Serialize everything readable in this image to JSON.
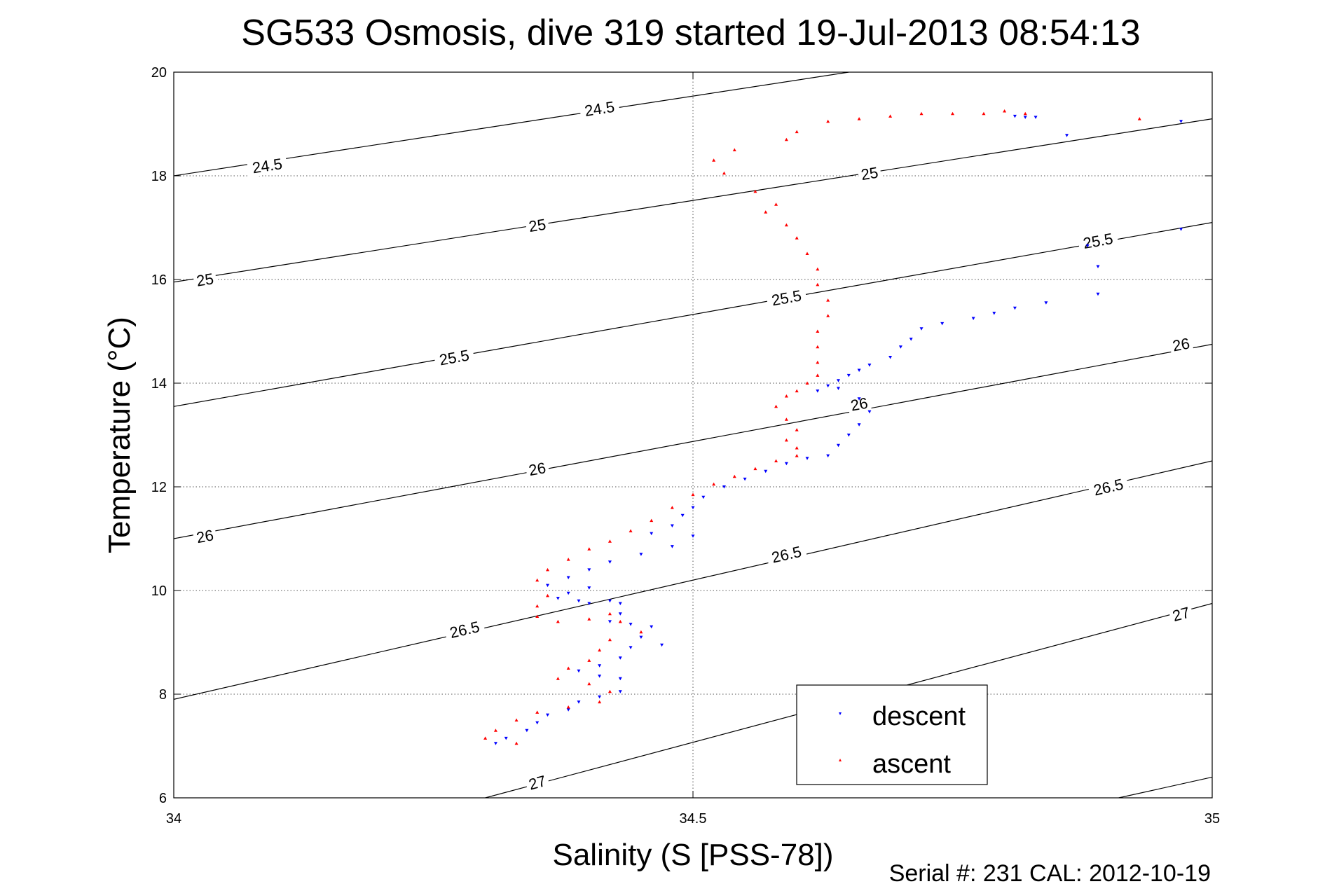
{
  "title": "SG533 Osmosis, dive 319 started 19-Jul-2013 08:54:13",
  "footer": "Serial #: 231  CAL: 2012-10-19",
  "chart_data": {
    "type": "scatter",
    "xlabel": "Salinity (S [PSS-78])",
    "ylabel": "Temperature (°C)",
    "xlim": [
      34,
      35
    ],
    "ylim": [
      6,
      20
    ],
    "xticks": [
      34,
      34.5,
      35
    ],
    "xtick_labels": [
      "34",
      "34.5",
      "35"
    ],
    "yticks": [
      6,
      8,
      10,
      12,
      14,
      16,
      18,
      20
    ],
    "ytick_labels": [
      "6",
      "8",
      "10",
      "12",
      "14",
      "16",
      "18",
      "20"
    ],
    "grid": true,
    "legend_position": "bottom-right",
    "contours": [
      {
        "label": "24.5",
        "line": [
          [
            34,
            18.0
          ],
          [
            34.65,
            20.0
          ]
        ],
        "labels_at": [
          [
            34.09,
            18.2
          ],
          [
            34.41,
            19.3
          ]
        ]
      },
      {
        "label": "25",
        "line": [
          [
            34,
            15.95
          ],
          [
            35,
            19.1
          ]
        ],
        "labels_at": [
          [
            34.03,
            16.0
          ],
          [
            34.35,
            17.05
          ],
          [
            34.67,
            18.05
          ]
        ]
      },
      {
        "label": "25.5",
        "line": [
          [
            34,
            13.55
          ],
          [
            35,
            17.1
          ]
        ],
        "labels_at": [
          [
            34.27,
            14.5
          ],
          [
            34.59,
            15.65
          ],
          [
            34.89,
            16.75
          ]
        ]
      },
      {
        "label": "26",
        "line": [
          [
            34,
            11.0
          ],
          [
            35,
            14.75
          ]
        ],
        "labels_at": [
          [
            34.03,
            11.05
          ],
          [
            34.35,
            12.35
          ],
          [
            34.66,
            13.6
          ],
          [
            34.97,
            14.75
          ]
        ]
      },
      {
        "label": "26.5",
        "line": [
          [
            34,
            7.9
          ],
          [
            35,
            12.5
          ]
        ],
        "labels_at": [
          [
            34.28,
            9.25
          ],
          [
            34.59,
            10.7
          ],
          [
            34.9,
            12.0
          ]
        ]
      },
      {
        "label": "27",
        "line": [
          [
            34.3,
            6.0
          ],
          [
            35,
            9.75
          ]
        ],
        "labels_at": [
          [
            34.35,
            6.3
          ],
          [
            34.97,
            9.55
          ]
        ]
      },
      {
        "label": "",
        "line": [
          [
            34.91,
            6.0
          ],
          [
            35,
            6.4
          ]
        ],
        "labels_at": []
      }
    ],
    "series": [
      {
        "name": "descent",
        "color": "#0000ff",
        "marker": "triangle-down",
        "points": [
          [
            34.97,
            19.05
          ],
          [
            34.83,
            19.13
          ],
          [
            34.82,
            19.13
          ],
          [
            34.81,
            19.15
          ],
          [
            34.86,
            18.78
          ],
          [
            34.97,
            16.97
          ],
          [
            34.88,
            16.65
          ],
          [
            34.89,
            16.25
          ],
          [
            34.89,
            15.72
          ],
          [
            34.84,
            15.55
          ],
          [
            34.81,
            15.45
          ],
          [
            34.79,
            15.35
          ],
          [
            34.77,
            15.25
          ],
          [
            34.74,
            15.15
          ],
          [
            34.72,
            15.05
          ],
          [
            34.71,
            14.85
          ],
          [
            34.7,
            14.7
          ],
          [
            34.69,
            14.5
          ],
          [
            34.67,
            14.35
          ],
          [
            34.66,
            14.25
          ],
          [
            34.65,
            14.15
          ],
          [
            34.64,
            14.05
          ],
          [
            34.63,
            13.95
          ],
          [
            34.62,
            13.85
          ],
          [
            34.64,
            13.9
          ],
          [
            34.66,
            13.7
          ],
          [
            34.67,
            13.45
          ],
          [
            34.66,
            13.2
          ],
          [
            34.65,
            13.0
          ],
          [
            34.64,
            12.8
          ],
          [
            34.63,
            12.6
          ],
          [
            34.61,
            12.55
          ],
          [
            34.59,
            12.45
          ],
          [
            34.57,
            12.3
          ],
          [
            34.55,
            12.15
          ],
          [
            34.53,
            12.0
          ],
          [
            34.51,
            11.8
          ],
          [
            34.5,
            11.6
          ],
          [
            34.49,
            11.45
          ],
          [
            34.48,
            11.25
          ],
          [
            34.46,
            11.1
          ],
          [
            34.5,
            11.05
          ],
          [
            34.48,
            10.85
          ],
          [
            34.45,
            10.7
          ],
          [
            34.42,
            10.55
          ],
          [
            34.4,
            10.4
          ],
          [
            34.38,
            10.25
          ],
          [
            34.36,
            10.1
          ],
          [
            34.4,
            10.05
          ],
          [
            34.38,
            9.95
          ],
          [
            34.37,
            9.85
          ],
          [
            34.39,
            9.8
          ],
          [
            34.4,
            9.75
          ],
          [
            34.42,
            9.8
          ],
          [
            34.43,
            9.75
          ],
          [
            34.43,
            9.55
          ],
          [
            34.42,
            9.4
          ],
          [
            34.44,
            9.35
          ],
          [
            34.46,
            9.3
          ],
          [
            34.45,
            9.1
          ],
          [
            34.47,
            8.95
          ],
          [
            34.44,
            8.9
          ],
          [
            34.43,
            8.7
          ],
          [
            34.41,
            8.55
          ],
          [
            34.39,
            8.45
          ],
          [
            34.41,
            8.35
          ],
          [
            34.43,
            8.3
          ],
          [
            34.43,
            8.05
          ],
          [
            34.41,
            7.95
          ],
          [
            34.39,
            7.85
          ],
          [
            34.38,
            7.7
          ],
          [
            34.36,
            7.6
          ],
          [
            34.35,
            7.45
          ],
          [
            34.34,
            7.3
          ],
          [
            34.32,
            7.15
          ],
          [
            34.31,
            7.05
          ]
        ]
      },
      {
        "name": "ascent",
        "color": "#ff0000",
        "marker": "triangle-up",
        "points": [
          [
            34.93,
            19.1
          ],
          [
            34.82,
            19.2
          ],
          [
            34.8,
            19.25
          ],
          [
            34.78,
            19.2
          ],
          [
            34.75,
            19.2
          ],
          [
            34.72,
            19.2
          ],
          [
            34.69,
            19.15
          ],
          [
            34.66,
            19.1
          ],
          [
            34.63,
            19.05
          ],
          [
            34.6,
            18.85
          ],
          [
            34.59,
            18.7
          ],
          [
            34.54,
            18.5
          ],
          [
            34.52,
            18.3
          ],
          [
            34.53,
            18.05
          ],
          [
            34.56,
            17.7
          ],
          [
            34.58,
            17.45
          ],
          [
            34.57,
            17.3
          ],
          [
            34.59,
            17.05
          ],
          [
            34.6,
            16.8
          ],
          [
            34.61,
            16.5
          ],
          [
            34.62,
            16.2
          ],
          [
            34.62,
            15.9
          ],
          [
            34.63,
            15.6
          ],
          [
            34.63,
            15.3
          ],
          [
            34.62,
            15.0
          ],
          [
            34.62,
            14.7
          ],
          [
            34.62,
            14.4
          ],
          [
            34.62,
            14.15
          ],
          [
            34.61,
            14.0
          ],
          [
            34.6,
            13.85
          ],
          [
            34.59,
            13.75
          ],
          [
            34.58,
            13.55
          ],
          [
            34.59,
            13.3
          ],
          [
            34.6,
            13.1
          ],
          [
            34.59,
            12.9
          ],
          [
            34.6,
            12.75
          ],
          [
            34.6,
            12.6
          ],
          [
            34.58,
            12.5
          ],
          [
            34.56,
            12.35
          ],
          [
            34.54,
            12.2
          ],
          [
            34.52,
            12.05
          ],
          [
            34.5,
            11.85
          ],
          [
            34.48,
            11.6
          ],
          [
            34.46,
            11.35
          ],
          [
            34.44,
            11.15
          ],
          [
            34.42,
            10.95
          ],
          [
            34.4,
            10.8
          ],
          [
            34.38,
            10.6
          ],
          [
            34.36,
            10.4
          ],
          [
            34.35,
            10.2
          ],
          [
            34.36,
            9.9
          ],
          [
            34.35,
            9.7
          ],
          [
            34.35,
            9.5
          ],
          [
            34.37,
            9.4
          ],
          [
            34.4,
            9.45
          ],
          [
            34.42,
            9.55
          ],
          [
            34.43,
            9.4
          ],
          [
            34.45,
            9.2
          ],
          [
            34.42,
            9.05
          ],
          [
            34.41,
            8.85
          ],
          [
            34.4,
            8.65
          ],
          [
            34.38,
            8.5
          ],
          [
            34.37,
            8.3
          ],
          [
            34.4,
            8.2
          ],
          [
            34.42,
            8.05
          ],
          [
            34.41,
            7.85
          ],
          [
            34.38,
            7.75
          ],
          [
            34.35,
            7.65
          ],
          [
            34.33,
            7.5
          ],
          [
            34.31,
            7.3
          ],
          [
            34.3,
            7.15
          ],
          [
            34.33,
            7.05
          ]
        ]
      }
    ]
  }
}
